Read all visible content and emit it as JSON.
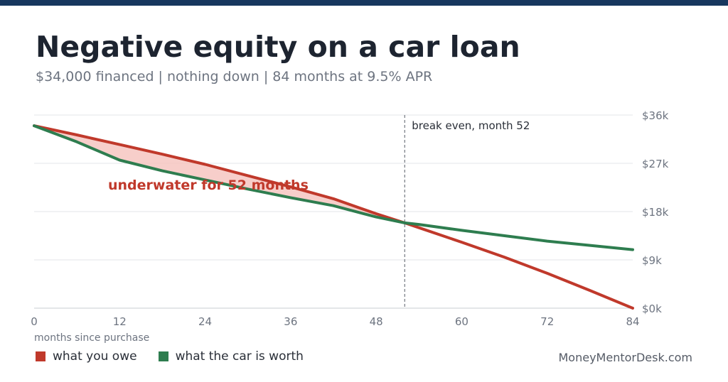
{
  "header": {
    "title": "Negative equity on a car loan",
    "subtitle": "$34,000 financed  |  nothing down  |  84 months at 9.5% APR"
  },
  "colors": {
    "owe": "#c0392b",
    "worth": "#2e7d4f",
    "gap_fill": "#f6c6c1",
    "top_bar": "#17375e"
  },
  "chart_data": {
    "type": "line",
    "xlabel": "months since purchase",
    "ylabel": "",
    "xlim": [
      0,
      84
    ],
    "ylim": [
      0,
      36
    ],
    "x_ticks": [
      0,
      12,
      24,
      36,
      48,
      60,
      72,
      84
    ],
    "x_tick_labels": [
      "0",
      "12",
      "24",
      "36",
      "48",
      "60",
      "72",
      "84"
    ],
    "y_ticks": [
      0,
      9,
      18,
      27,
      36
    ],
    "y_tick_labels": [
      "$0k",
      "$9k",
      "$18k",
      "$27k",
      "$36k"
    ],
    "y_axis_side": "right",
    "grid": "horizontal",
    "legend_position": "bottom-left",
    "series": [
      {
        "name": "what you owe",
        "color_key": "owe",
        "x": [
          0,
          6,
          12,
          18,
          24,
          30,
          36,
          42,
          48,
          52,
          54,
          60,
          66,
          72,
          78,
          84
        ],
        "y": [
          34.0,
          32.3,
          30.5,
          28.7,
          26.8,
          24.7,
          22.6,
          20.4,
          17.6,
          15.9,
          15.0,
          12.3,
          9.5,
          6.5,
          3.3,
          0.0
        ]
      },
      {
        "name": "what the car is worth",
        "color_key": "worth",
        "x": [
          0,
          6,
          12,
          18,
          24,
          30,
          36,
          42,
          48,
          52,
          54,
          60,
          66,
          72,
          78,
          84
        ],
        "y": [
          34.0,
          31.0,
          27.6,
          25.6,
          23.9,
          22.2,
          20.6,
          19.1,
          17.0,
          15.9,
          15.6,
          14.5,
          13.5,
          12.5,
          11.7,
          10.9
        ]
      }
    ],
    "annotations": [
      {
        "text": "break even, month 52",
        "x": 52,
        "type": "vline"
      },
      {
        "text": "underwater for 52 months",
        "x": 21,
        "y": 23.5,
        "type": "label"
      }
    ]
  },
  "footer": {
    "source": "MoneyMentorDesk.com"
  }
}
